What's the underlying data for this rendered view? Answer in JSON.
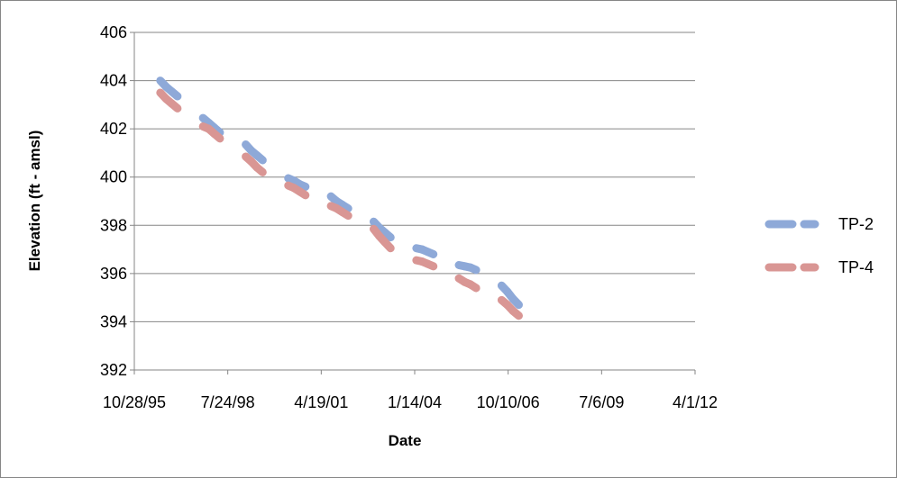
{
  "chart_data": {
    "type": "line",
    "title": "",
    "xlabel": "Date",
    "ylabel": "Elevation (ft - amsl)",
    "x_type": "date",
    "x_tick_labels": [
      "10/28/95",
      "7/24/98",
      "4/19/01",
      "1/14/04",
      "10/10/06",
      "7/6/09",
      "4/1/12"
    ],
    "x_ticks": [
      "1995-10-28",
      "1998-07-24",
      "2001-04-19",
      "2004-01-14",
      "2006-10-10",
      "2009-07-06",
      "2012-04-01"
    ],
    "xlim": [
      "1995-10-28",
      "2012-04-01"
    ],
    "y_ticks": [
      392,
      394,
      396,
      398,
      400,
      402,
      404,
      406
    ],
    "ylim": [
      392,
      406
    ],
    "grid": "horizontal",
    "legend_position": "right",
    "line_style": "dashed",
    "series": [
      {
        "name": "TP-2",
        "color": "#8EA9D8",
        "points": [
          {
            "x": "1996-08-01",
            "y": 404.0
          },
          {
            "x": "1996-10-01",
            "y": 403.75
          },
          {
            "x": "1996-12-01",
            "y": 403.55
          },
          {
            "x": "1997-02-01",
            "y": 403.35
          },
          {
            "x": "1997-11-01",
            "y": 402.45
          },
          {
            "x": "1998-01-01",
            "y": 402.25
          },
          {
            "x": "1998-03-01",
            "y": 402.05
          },
          {
            "x": "1998-05-01",
            "y": 401.85
          },
          {
            "x": "1999-02-01",
            "y": 401.35
          },
          {
            "x": "1999-04-01",
            "y": 401.1
          },
          {
            "x": "1999-06-01",
            "y": 400.9
          },
          {
            "x": "1999-08-01",
            "y": 400.7
          },
          {
            "x": "2000-05-01",
            "y": 399.95
          },
          {
            "x": "2000-07-01",
            "y": 399.85
          },
          {
            "x": "2000-09-01",
            "y": 399.7
          },
          {
            "x": "2000-11-01",
            "y": 399.6
          },
          {
            "x": "2001-08-01",
            "y": 399.2
          },
          {
            "x": "2001-10-01",
            "y": 399.0
          },
          {
            "x": "2001-12-01",
            "y": 398.85
          },
          {
            "x": "2002-02-01",
            "y": 398.7
          },
          {
            "x": "2002-11-01",
            "y": 398.15
          },
          {
            "x": "2003-01-01",
            "y": 397.9
          },
          {
            "x": "2003-03-01",
            "y": 397.7
          },
          {
            "x": "2003-05-01",
            "y": 397.5
          },
          {
            "x": "2004-02-01",
            "y": 397.05
          },
          {
            "x": "2004-04-01",
            "y": 397.0
          },
          {
            "x": "2004-06-01",
            "y": 396.9
          },
          {
            "x": "2004-08-01",
            "y": 396.8
          },
          {
            "x": "2005-05-01",
            "y": 396.35
          },
          {
            "x": "2005-07-01",
            "y": 396.3
          },
          {
            "x": "2005-09-01",
            "y": 396.25
          },
          {
            "x": "2005-11-01",
            "y": 396.15
          },
          {
            "x": "2006-08-01",
            "y": 395.5
          },
          {
            "x": "2006-10-01",
            "y": 395.25
          },
          {
            "x": "2006-12-01",
            "y": 394.95
          },
          {
            "x": "2007-02-01",
            "y": 394.7
          }
        ]
      },
      {
        "name": "TP-4",
        "color": "#D99694",
        "points": [
          {
            "x": "1996-08-01",
            "y": 403.5
          },
          {
            "x": "1996-10-01",
            "y": 403.25
          },
          {
            "x": "1996-12-01",
            "y": 403.05
          },
          {
            "x": "1997-02-01",
            "y": 402.85
          },
          {
            "x": "1997-11-01",
            "y": 402.1
          },
          {
            "x": "1998-01-01",
            "y": 402.0
          },
          {
            "x": "1998-03-01",
            "y": 401.8
          },
          {
            "x": "1998-05-01",
            "y": 401.6
          },
          {
            "x": "1999-02-01",
            "y": 400.85
          },
          {
            "x": "1999-04-01",
            "y": 400.65
          },
          {
            "x": "1999-06-01",
            "y": 400.4
          },
          {
            "x": "1999-08-01",
            "y": 400.2
          },
          {
            "x": "2000-05-01",
            "y": 399.65
          },
          {
            "x": "2000-07-01",
            "y": 399.55
          },
          {
            "x": "2000-09-01",
            "y": 399.4
          },
          {
            "x": "2000-11-01",
            "y": 399.25
          },
          {
            "x": "2001-08-01",
            "y": 398.8
          },
          {
            "x": "2001-10-01",
            "y": 398.7
          },
          {
            "x": "2001-12-01",
            "y": 398.55
          },
          {
            "x": "2002-02-01",
            "y": 398.4
          },
          {
            "x": "2002-11-01",
            "y": 397.85
          },
          {
            "x": "2003-01-01",
            "y": 397.55
          },
          {
            "x": "2003-03-01",
            "y": 397.3
          },
          {
            "x": "2003-05-01",
            "y": 397.05
          },
          {
            "x": "2004-02-01",
            "y": 396.55
          },
          {
            "x": "2004-04-01",
            "y": 396.5
          },
          {
            "x": "2004-06-01",
            "y": 396.4
          },
          {
            "x": "2004-08-01",
            "y": 396.3
          },
          {
            "x": "2005-05-01",
            "y": 395.8
          },
          {
            "x": "2005-07-01",
            "y": 395.65
          },
          {
            "x": "2005-09-01",
            "y": 395.55
          },
          {
            "x": "2005-11-01",
            "y": 395.4
          },
          {
            "x": "2006-08-01",
            "y": 394.9
          },
          {
            "x": "2006-10-01",
            "y": 394.7
          },
          {
            "x": "2006-12-01",
            "y": 394.45
          },
          {
            "x": "2007-02-01",
            "y": 394.25
          }
        ]
      }
    ]
  }
}
